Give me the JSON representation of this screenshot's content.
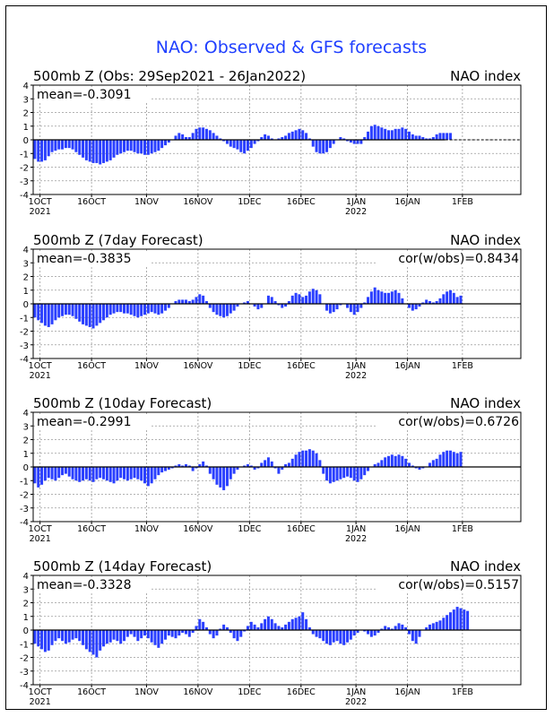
{
  "page": {
    "title": "NAO: Observed & GFS forecasts",
    "title_color": "#1f3fff",
    "bar_color": "#2a3fff"
  },
  "chart_data": [
    {
      "type": "bar",
      "title": "500mb  Z  (Obs: 29Sep2021 - 26Jan2022)",
      "right_label": "NAO index",
      "mean_label": "mean=-0.3091",
      "cor_label": "",
      "ylim": [
        -4,
        4
      ],
      "yticks": [
        4,
        3,
        2,
        1,
        0,
        -1,
        -2,
        -3,
        -4
      ],
      "xlim": [
        0,
        142
      ],
      "xtick_days": [
        2,
        17,
        33,
        48,
        63,
        78,
        94,
        109,
        125
      ],
      "xtick_labels": [
        "1OCT",
        "16OCT",
        "1NOV",
        "16NOV",
        "1DEC",
        "16DEC",
        "1JAN",
        "16JAN",
        "1FEB"
      ],
      "xtick_sublabels": [
        "2021",
        "",
        "",
        "",
        "",
        "",
        "2022",
        "",
        ""
      ],
      "grid": true,
      "dashed_zero_after_day": 120,
      "values": [
        -1.4,
        -1.6,
        -1.6,
        -1.5,
        -1.2,
        -0.9,
        -0.8,
        -0.7,
        -0.7,
        -0.6,
        -0.6,
        -0.7,
        -0.9,
        -1.1,
        -1.3,
        -1.5,
        -1.6,
        -1.7,
        -1.7,
        -1.8,
        -1.7,
        -1.6,
        -1.5,
        -1.3,
        -1.1,
        -1.0,
        -0.9,
        -0.8,
        -0.8,
        -0.9,
        -1.0,
        -1.0,
        -1.1,
        -1.1,
        -1.0,
        -0.9,
        -0.8,
        -0.6,
        -0.4,
        -0.2,
        0.0,
        0.3,
        0.5,
        0.4,
        0.2,
        0.2,
        0.5,
        0.8,
        0.9,
        0.9,
        0.8,
        0.7,
        0.5,
        0.3,
        0.1,
        -0.1,
        -0.3,
        -0.5,
        -0.6,
        -0.7,
        -0.9,
        -1.0,
        -0.8,
        -0.6,
        -0.3,
        -0.1,
        0.2,
        0.4,
        0.3,
        0.1,
        0.0,
        0.1,
        0.2,
        0.3,
        0.5,
        0.6,
        0.7,
        0.8,
        0.7,
        0.5,
        0.1,
        -0.5,
        -0.9,
        -1.0,
        -1.0,
        -0.9,
        -0.6,
        -0.3,
        0.0,
        0.2,
        0.1,
        -0.1,
        -0.2,
        -0.3,
        -0.3,
        -0.3,
        0.2,
        0.6,
        1.0,
        1.1,
        1.0,
        0.9,
        0.8,
        0.7,
        0.7,
        0.8,
        0.8,
        0.9,
        0.8,
        0.6,
        0.4,
        0.3,
        0.3,
        0.2,
        0.1,
        0.1,
        0.2,
        0.4,
        0.5,
        0.5,
        0.5,
        0.5
      ]
    },
    {
      "type": "bar",
      "title": "500mb  Z  (7day Forecast)",
      "right_label": "NAO index",
      "mean_label": "mean=-0.3835",
      "cor_label": "cor(w/obs)=0.8434",
      "ylim": [
        -4,
        4
      ],
      "yticks": [
        4,
        3,
        2,
        1,
        0,
        -1,
        -2,
        -3,
        -4
      ],
      "xlim": [
        0,
        142
      ],
      "xtick_days": [
        2,
        17,
        33,
        48,
        63,
        78,
        94,
        109,
        125
      ],
      "xtick_labels": [
        "1OCT",
        "16OCT",
        "1NOV",
        "16NOV",
        "1DEC",
        "16DEC",
        "1JAN",
        "16JAN",
        "1FEB"
      ],
      "xtick_sublabels": [
        "2021",
        "",
        "",
        "",
        "",
        "",
        "2022",
        "",
        ""
      ],
      "grid": true,
      "dashed_zero_after_day": null,
      "values": [
        -1.0,
        -1.2,
        -1.4,
        -1.6,
        -1.7,
        -1.5,
        -1.2,
        -1.0,
        -0.9,
        -0.8,
        -0.8,
        -0.9,
        -1.1,
        -1.3,
        -1.5,
        -1.6,
        -1.7,
        -1.8,
        -1.6,
        -1.4,
        -1.2,
        -1.0,
        -0.8,
        -0.7,
        -0.6,
        -0.6,
        -0.7,
        -0.7,
        -0.8,
        -0.9,
        -1.0,
        -0.9,
        -0.8,
        -0.7,
        -0.6,
        -0.7,
        -0.8,
        -0.7,
        -0.5,
        -0.3,
        0.0,
        0.2,
        0.3,
        0.3,
        0.3,
        0.2,
        0.3,
        0.5,
        0.7,
        0.6,
        0.2,
        -0.3,
        -0.6,
        -0.8,
        -0.9,
        -1.0,
        -0.9,
        -0.7,
        -0.5,
        -0.2,
        0.0,
        0.1,
        0.2,
        0.0,
        -0.2,
        -0.4,
        -0.3,
        0.0,
        0.6,
        0.5,
        0.2,
        -0.1,
        -0.3,
        -0.2,
        0.2,
        0.6,
        0.8,
        0.7,
        0.5,
        0.6,
        0.9,
        1.1,
        1.0,
        0.7,
        0.0,
        -0.5,
        -0.7,
        -0.6,
        -0.4,
        -0.1,
        0.0,
        -0.3,
        -0.6,
        -0.8,
        -0.6,
        -0.3,
        0.1,
        0.5,
        0.9,
        1.2,
        1.0,
        0.9,
        0.8,
        0.8,
        0.9,
        1.0,
        0.8,
        0.4,
        0.0,
        -0.3,
        -0.5,
        -0.4,
        -0.2,
        0.1,
        0.3,
        0.2,
        0.1,
        0.2,
        0.4,
        0.7,
        0.9,
        1.0,
        0.8,
        0.5,
        0.6
      ]
    },
    {
      "type": "bar",
      "title": "500mb  Z  (10day Forecast)",
      "right_label": "NAO index",
      "mean_label": "mean=-0.2991",
      "cor_label": "cor(w/obs)=0.6726",
      "ylim": [
        -4,
        4
      ],
      "yticks": [
        4,
        3,
        2,
        1,
        0,
        -1,
        -2,
        -3,
        -4
      ],
      "xlim": [
        0,
        142
      ],
      "xtick_days": [
        2,
        17,
        33,
        48,
        63,
        78,
        94,
        109,
        125
      ],
      "xtick_labels": [
        "1OCT",
        "16OCT",
        "1NOV",
        "16NOV",
        "1DEC",
        "16DEC",
        "1JAN",
        "16JAN",
        "1FEB"
      ],
      "xtick_sublabels": [
        "2021",
        "",
        "",
        "",
        "",
        "",
        "2022",
        "",
        ""
      ],
      "grid": true,
      "dashed_zero_after_day": null,
      "values": [
        -1.2,
        -1.5,
        -1.3,
        -1.0,
        -0.8,
        -0.9,
        -1.0,
        -0.8,
        -0.6,
        -0.5,
        -0.7,
        -0.9,
        -1.0,
        -1.1,
        -1.0,
        -0.9,
        -1.0,
        -1.1,
        -0.9,
        -0.8,
        -0.9,
        -1.0,
        -1.1,
        -1.2,
        -1.0,
        -0.8,
        -0.9,
        -1.0,
        -0.9,
        -0.8,
        -0.9,
        -1.0,
        -1.2,
        -1.4,
        -1.2,
        -0.9,
        -0.6,
        -0.4,
        -0.3,
        -0.2,
        -0.1,
        0.1,
        0.2,
        0.1,
        0.2,
        0.1,
        -0.3,
        -0.1,
        0.2,
        0.4,
        0.1,
        -0.5,
        -0.9,
        -1.3,
        -1.5,
        -1.7,
        -1.4,
        -0.9,
        -0.5,
        -0.2,
        0.0,
        0.1,
        0.2,
        0.1,
        -0.2,
        -0.1,
        0.3,
        0.5,
        0.7,
        0.4,
        -0.1,
        -0.5,
        -0.2,
        0.2,
        0.3,
        0.6,
        0.9,
        1.1,
        1.2,
        1.2,
        1.3,
        1.2,
        1.0,
        0.5,
        -0.5,
        -1.0,
        -1.2,
        -1.1,
        -1.0,
        -0.9,
        -0.8,
        -0.7,
        -0.8,
        -1.0,
        -1.1,
        -0.9,
        -0.6,
        -0.3,
        0.0,
        0.2,
        0.3,
        0.5,
        0.7,
        0.8,
        0.9,
        0.8,
        0.9,
        0.8,
        0.6,
        0.3,
        0.1,
        -0.1,
        -0.2,
        -0.1,
        0.0,
        0.3,
        0.5,
        0.6,
        0.9,
        1.1,
        1.2,
        1.2,
        1.1,
        1.0,
        1.1
      ]
    },
    {
      "type": "bar",
      "title": "500mb  Z  (14day Forecast)",
      "right_label": "NAO index",
      "mean_label": "mean=-0.3328",
      "cor_label": "cor(w/obs)=0.5157",
      "ylim": [
        -4,
        4
      ],
      "yticks": [
        4,
        3,
        2,
        1,
        0,
        -1,
        -2,
        -3,
        -4
      ],
      "xlim": [
        0,
        142
      ],
      "xtick_days": [
        2,
        17,
        33,
        48,
        63,
        78,
        94,
        109,
        125
      ],
      "xtick_labels": [
        "1OCT",
        "16OCT",
        "1NOV",
        "16NOV",
        "1DEC",
        "16DEC",
        "1JAN",
        "16JAN",
        "1FEB"
      ],
      "xtick_sublabels": [
        "2021",
        "",
        "",
        "",
        "",
        "",
        "2022",
        "",
        ""
      ],
      "grid": true,
      "dashed_zero_after_day": null,
      "values": [
        -1.0,
        -1.2,
        -1.4,
        -1.6,
        -1.5,
        -1.1,
        -0.8,
        -0.6,
        -0.8,
        -1.0,
        -0.9,
        -0.7,
        -0.6,
        -0.8,
        -1.1,
        -1.4,
        -1.6,
        -1.8,
        -2.0,
        -1.5,
        -1.2,
        -1.0,
        -0.9,
        -0.7,
        -0.8,
        -1.0,
        -0.8,
        -0.5,
        -0.3,
        -0.5,
        -0.8,
        -0.6,
        -0.4,
        -0.6,
        -0.9,
        -1.1,
        -1.3,
        -1.0,
        -0.7,
        -0.4,
        -0.5,
        -0.6,
        -0.4,
        -0.2,
        -0.3,
        -0.5,
        -0.2,
        0.3,
        0.8,
        0.6,
        0.2,
        -0.3,
        -0.6,
        -0.4,
        0.1,
        0.4,
        0.2,
        -0.2,
        -0.6,
        -0.8,
        -0.5,
        -0.1,
        0.3,
        0.6,
        0.4,
        0.2,
        0.5,
        0.8,
        1.0,
        0.8,
        0.5,
        0.3,
        0.2,
        0.4,
        0.6,
        0.8,
        0.9,
        1.0,
        1.3,
        0.8,
        0.2,
        -0.3,
        -0.5,
        -0.6,
        -0.8,
        -1.0,
        -1.1,
        -0.9,
        -0.8,
        -1.0,
        -1.1,
        -0.9,
        -0.7,
        -0.4,
        -0.2,
        0.0,
        -0.1,
        -0.3,
        -0.5,
        -0.4,
        -0.2,
        0.1,
        0.3,
        0.2,
        0.1,
        0.3,
        0.5,
        0.4,
        0.2,
        -0.3,
        -0.8,
        -1.0,
        -0.5,
        0.0,
        0.2,
        0.4,
        0.5,
        0.6,
        0.7,
        0.9,
        1.1,
        1.3,
        1.5,
        1.7,
        1.6,
        1.5,
        1.4
      ]
    }
  ]
}
